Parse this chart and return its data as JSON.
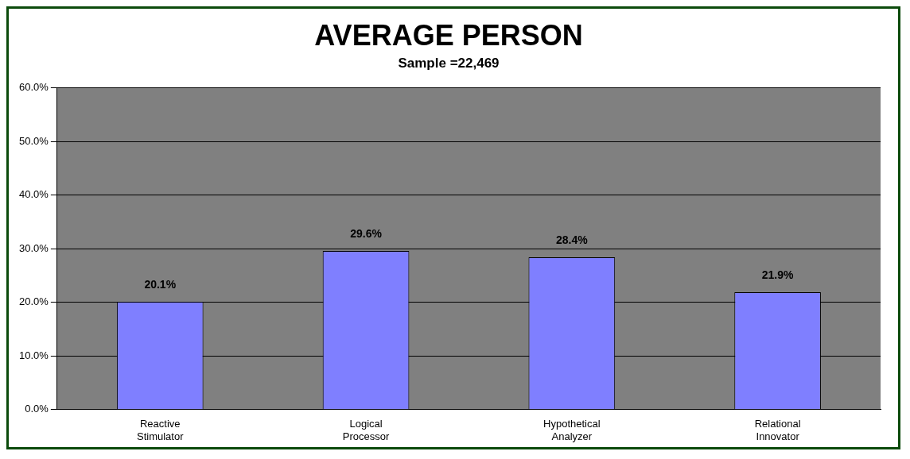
{
  "chart_data": {
    "type": "bar",
    "title": "AVERAGE PERSON",
    "subtitle": "Sample =22,469",
    "categories": [
      "Reactive Stimulator",
      "Logical Processor",
      "Hypothetical Analyzer",
      "Relational Innovator"
    ],
    "values": [
      20.1,
      29.6,
      28.4,
      21.9
    ],
    "color": "#7f7fff",
    "value_labels": [
      "20.1%",
      "29.6%",
      "28.4%",
      "21.9%"
    ],
    "ylim": [
      0,
      60
    ],
    "yticks": [
      {
        "value": 0,
        "label": "0.0%"
      },
      {
        "value": 10,
        "label": "10.0%"
      },
      {
        "value": 20,
        "label": "20.0%"
      },
      {
        "value": 30,
        "label": "30.0%"
      },
      {
        "value": 40,
        "label": "40.0%"
      },
      {
        "value": 50,
        "label": "50.0%"
      },
      {
        "value": 60,
        "label": "60.0%"
      }
    ],
    "grid": "y",
    "legend": false
  }
}
